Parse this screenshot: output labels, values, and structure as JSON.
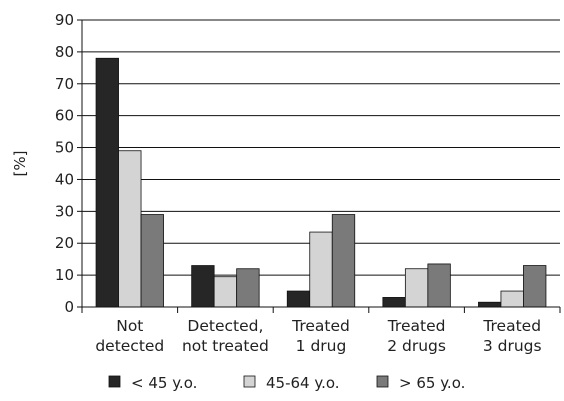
{
  "chart_data": {
    "type": "bar",
    "ylabel": "[%]",
    "ylim": [
      0,
      90
    ],
    "ytick_step": 10,
    "grid": true,
    "legend_position": "bottom",
    "categories": [
      [
        "Not",
        "detected"
      ],
      [
        "Detected,",
        "not treated"
      ],
      [
        "Treated",
        "1 drug"
      ],
      [
        "Treated",
        "2 drugs"
      ],
      [
        "Treated",
        "3 drugs"
      ]
    ],
    "series": [
      {
        "name": "< 45 y.o.",
        "color": "#262626",
        "values": [
          78,
          13,
          5,
          3,
          1.5
        ]
      },
      {
        "name": "45-64 y.o.",
        "color": "#d4d4d4",
        "values": [
          49,
          9.5,
          23.5,
          12,
          5
        ]
      },
      {
        "name": "> 65 y.o.",
        "color": "#7a7a7a",
        "values": [
          29,
          12,
          29,
          13.5,
          13
        ]
      }
    ]
  }
}
